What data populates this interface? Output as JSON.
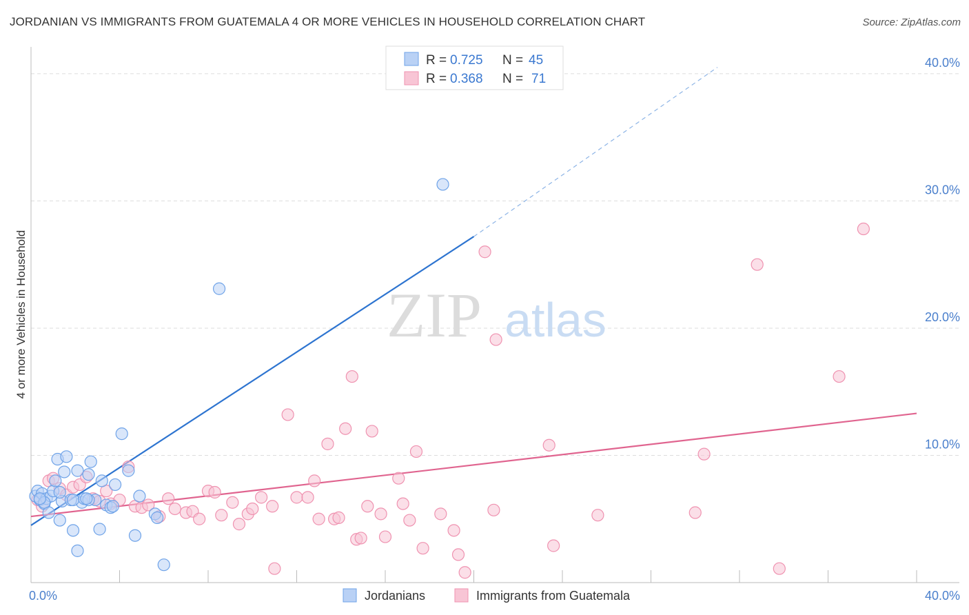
{
  "header": {
    "title": "JORDANIAN VS IMMIGRANTS FROM GUATEMALA 4 OR MORE VEHICLES IN HOUSEHOLD CORRELATION CHART",
    "source": "Source: ZipAtlas.com"
  },
  "watermark": {
    "zip": "ZIP",
    "atlas": "atlas"
  },
  "colors": {
    "blue": "#6fa3e8",
    "blue_fill": "#b9d1f5",
    "blue_line": "#2d74d0",
    "pink": "#ef92b0",
    "pink_fill": "#f8c5d5",
    "pink_line": "#e0648f",
    "axis_text": "#4a7fcc",
    "grid": "#dddddd"
  },
  "chart_data": {
    "type": "scatter",
    "title": "JORDANIAN VS IMMIGRANTS FROM GUATEMALA 4 OR MORE VEHICLES IN HOUSEHOLD CORRELATION CHART",
    "xlabel": "",
    "ylabel": "4 or more Vehicles in Household",
    "xlim": [
      0,
      40
    ],
    "ylim": [
      0,
      42
    ],
    "x_tick_labels": [
      "0.0%",
      "40.0%"
    ],
    "y_ticks": [
      10,
      20,
      30,
      40
    ],
    "y_tick_labels": [
      "10.0%",
      "20.0%",
      "30.0%",
      "40.0%"
    ],
    "legend_stats": [
      {
        "r_label": "R = ",
        "r": "0.725",
        "n_label": "N = ",
        "n": "45"
      },
      {
        "r_label": "R = ",
        "r": "0.368",
        "n_label": "N = ",
        "n": "71"
      }
    ],
    "series": [
      {
        "name": "Jordanians",
        "color": "#6fa3e8",
        "trend": {
          "x0": 0,
          "y0": 4.5,
          "x1": 20,
          "y1": 27.2,
          "dash_to_x": 31,
          "dash_to_y": 40.5
        },
        "points": [
          [
            0.2,
            6.8
          ],
          [
            0.3,
            7.2
          ],
          [
            0.4,
            6.5
          ],
          [
            0.5,
            7.0
          ],
          [
            0.6,
            6.2
          ],
          [
            0.7,
            6.6
          ],
          [
            0.8,
            5.5
          ],
          [
            0.9,
            6.8
          ],
          [
            1.0,
            7.2
          ],
          [
            1.1,
            8.0
          ],
          [
            1.2,
            9.7
          ],
          [
            1.3,
            4.9
          ],
          [
            1.4,
            6.4
          ],
          [
            1.5,
            8.7
          ],
          [
            1.6,
            9.9
          ],
          [
            1.8,
            6.5
          ],
          [
            1.9,
            4.1
          ],
          [
            2.1,
            8.8
          ],
          [
            2.3,
            6.3
          ],
          [
            2.4,
            6.6
          ],
          [
            2.6,
            8.5
          ],
          [
            2.7,
            9.5
          ],
          [
            2.9,
            6.5
          ],
          [
            3.1,
            4.2
          ],
          [
            3.2,
            8.0
          ],
          [
            3.4,
            6.1
          ],
          [
            3.6,
            5.9
          ],
          [
            3.8,
            7.7
          ],
          [
            4.1,
            11.7
          ],
          [
            4.4,
            8.8
          ],
          [
            4.7,
            3.7
          ],
          [
            4.9,
            6.8
          ],
          [
            5.6,
            5.4
          ],
          [
            5.7,
            5.1
          ],
          [
            6.0,
            1.4
          ],
          [
            8.5,
            23.1
          ],
          [
            18.6,
            31.3
          ],
          [
            2.1,
            2.5
          ],
          [
            0.6,
            6.3
          ],
          [
            1.9,
            6.5
          ],
          [
            2.6,
            6.5
          ],
          [
            3.7,
            6.0
          ],
          [
            0.4,
            6.6
          ],
          [
            1.3,
            7.1
          ],
          [
            2.5,
            6.6
          ]
        ]
      },
      {
        "name": "Immigrants from Guatemala",
        "color": "#ef92b0",
        "trend": {
          "x0": 0,
          "y0": 5.2,
          "x1": 40,
          "y1": 13.3
        },
        "points": [
          [
            0.3,
            6.5
          ],
          [
            0.5,
            6.0
          ],
          [
            0.8,
            8.0
          ],
          [
            1.0,
            8.2
          ],
          [
            1.3,
            7.4
          ],
          [
            1.6,
            6.9
          ],
          [
            1.9,
            7.5
          ],
          [
            2.2,
            7.7
          ],
          [
            2.5,
            8.3
          ],
          [
            2.8,
            6.6
          ],
          [
            3.1,
            6.4
          ],
          [
            3.4,
            7.2
          ],
          [
            3.6,
            6.2
          ],
          [
            4.0,
            6.5
          ],
          [
            4.4,
            9.1
          ],
          [
            4.7,
            6.0
          ],
          [
            5.0,
            5.9
          ],
          [
            5.3,
            6.1
          ],
          [
            5.8,
            5.2
          ],
          [
            6.2,
            6.6
          ],
          [
            6.5,
            5.8
          ],
          [
            7.0,
            5.5
          ],
          [
            7.3,
            5.6
          ],
          [
            7.6,
            5.0
          ],
          [
            8.0,
            7.2
          ],
          [
            8.3,
            7.1
          ],
          [
            8.6,
            5.3
          ],
          [
            9.1,
            6.3
          ],
          [
            9.4,
            4.6
          ],
          [
            9.8,
            5.4
          ],
          [
            10.0,
            5.8
          ],
          [
            10.4,
            6.7
          ],
          [
            10.9,
            6.0
          ],
          [
            11.0,
            1.1
          ],
          [
            11.6,
            13.2
          ],
          [
            12.0,
            6.7
          ],
          [
            12.5,
            6.7
          ],
          [
            12.8,
            8.0
          ],
          [
            13.4,
            10.9
          ],
          [
            13.0,
            5.0
          ],
          [
            13.7,
            5.0
          ],
          [
            13.9,
            5.1
          ],
          [
            14.2,
            12.1
          ],
          [
            14.5,
            16.2
          ],
          [
            14.7,
            3.4
          ],
          [
            14.9,
            3.5
          ],
          [
            15.2,
            6.0
          ],
          [
            15.4,
            11.9
          ],
          [
            15.8,
            5.4
          ],
          [
            16.0,
            3.6
          ],
          [
            16.6,
            8.2
          ],
          [
            16.8,
            6.2
          ],
          [
            17.1,
            4.9
          ],
          [
            17.4,
            10.3
          ],
          [
            17.7,
            2.7
          ],
          [
            18.5,
            5.4
          ],
          [
            19.1,
            4.1
          ],
          [
            19.3,
            2.2
          ],
          [
            19.6,
            0.8
          ],
          [
            20.5,
            26.0
          ],
          [
            20.9,
            5.7
          ],
          [
            21.0,
            19.1
          ],
          [
            23.4,
            10.8
          ],
          [
            23.6,
            2.9
          ],
          [
            25.6,
            5.3
          ],
          [
            30.0,
            5.5
          ],
          [
            30.4,
            10.1
          ],
          [
            32.8,
            25.0
          ],
          [
            33.8,
            1.1
          ],
          [
            36.5,
            16.2
          ],
          [
            37.6,
            27.8
          ]
        ]
      }
    ]
  }
}
